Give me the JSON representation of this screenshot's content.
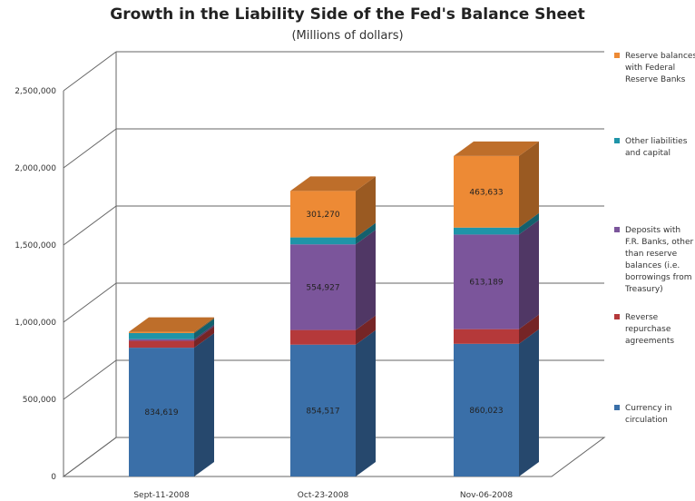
{
  "chart_data": {
    "type": "bar",
    "stacked": true,
    "three_d": true,
    "title": "Growth in the Liability Side of the Fed's Balance Sheet",
    "subtitle": "(Millions of dollars)",
    "categories": [
      "Sept-11-2008",
      "Oct-23-2008",
      "Nov-06-2008"
    ],
    "ylim": [
      0,
      2500000
    ],
    "yticks": [
      0,
      500000,
      1000000,
      1500000,
      2000000,
      2500000
    ],
    "ytick_labels": [
      "0",
      "500,000",
      "1,000,000",
      "1,500,000",
      "2,000,000",
      "2,500,000"
    ],
    "grid": true,
    "legend_position": "right",
    "series": [
      {
        "name": "Currency in circulation",
        "color": "#3a6fa8",
        "values": [
          834619,
          854517,
          860023
        ],
        "labels": [
          "834,619",
          "854,517",
          "860,023"
        ]
      },
      {
        "name": "Reverse repurchase agreements",
        "color": "#b5393a",
        "values": [
          45000,
          95000,
          95000
        ],
        "labels": [
          "",
          "",
          ""
        ]
      },
      {
        "name": "Deposits with F.R. Banks, other than reserve balances (i.e. borrowings from Treasury)",
        "color": "#7b559b",
        "values": [
          10000,
          554927,
          613189
        ],
        "labels": [
          "",
          "554,927",
          "613,189"
        ]
      },
      {
        "name": "Other liabilities and capital",
        "color": "#1f94a8",
        "values": [
          40000,
          45000,
          45000
        ],
        "labels": [
          "",
          "",
          ""
        ]
      },
      {
        "name": "Reserve balances with Federal Reserve Banks",
        "color": "#ed8a35",
        "values": [
          8000,
          301270,
          463633
        ],
        "labels": [
          "",
          "301,270",
          "463,633"
        ]
      }
    ],
    "legend": [
      {
        "series": 4,
        "lines": [
          "Reserve balances",
          "with Federal",
          "Reserve Banks"
        ]
      },
      {
        "series": 3,
        "lines": [
          "Other liabilities",
          "and capital"
        ]
      },
      {
        "series": 2,
        "lines": [
          "Deposits with",
          "F.R. Banks, other",
          "than reserve",
          "balances (i.e.",
          "borrowings from",
          "Treasury)"
        ]
      },
      {
        "series": 1,
        "lines": [
          "Reverse",
          "repurchase",
          "agreements"
        ]
      },
      {
        "series": 0,
        "lines": [
          "Currency in",
          "circulation"
        ]
      }
    ]
  }
}
